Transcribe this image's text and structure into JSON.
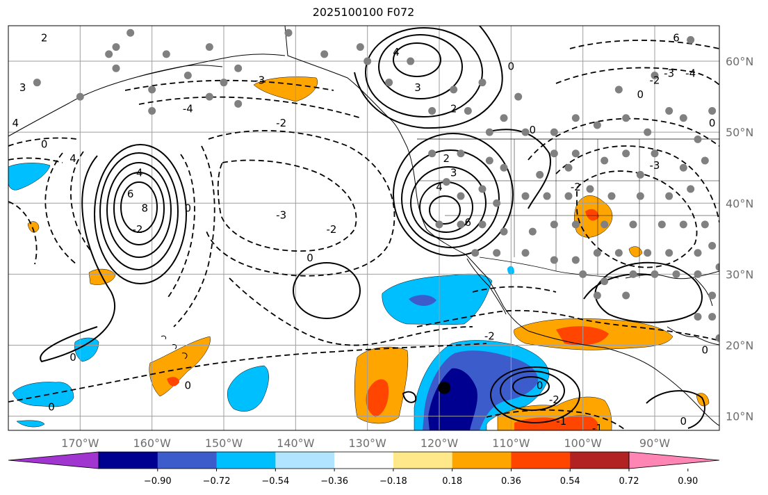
{
  "title": "2025100100 F072",
  "map": {
    "lon_range": [
      -180,
      -81
    ],
    "lat_range": [
      8,
      65
    ],
    "lat_ticks": [
      {
        "value": 60,
        "label": "60°N"
      },
      {
        "value": 50,
        "label": "50°N"
      },
      {
        "value": 40,
        "label": "40°N"
      },
      {
        "value": 30,
        "label": "30°N"
      },
      {
        "value": 20,
        "label": "20°N"
      },
      {
        "value": 10,
        "label": "10°N"
      }
    ],
    "lon_ticks": [
      {
        "value": -170,
        "label": "170°W"
      },
      {
        "value": -160,
        "label": "160°W"
      },
      {
        "value": -150,
        "label": "150°W"
      },
      {
        "value": -140,
        "label": "140°W"
      },
      {
        "value": -130,
        "label": "130°W"
      },
      {
        "value": -120,
        "label": "120°W"
      },
      {
        "value": -110,
        "label": "110°W"
      },
      {
        "value": -100,
        "label": "100°W"
      },
      {
        "value": -90,
        "label": "90°W"
      }
    ],
    "gridlines": true,
    "colors": {
      "grid": "#9e9e9e",
      "coast": "#000000",
      "contour": "#000000",
      "station": "#808080",
      "marker": "#000000"
    },
    "marker": {
      "lon": -119.3,
      "lat": 14.0
    },
    "contour_labels": [
      {
        "text": "2",
        "lon": -175,
        "lat": 63
      },
      {
        "text": "3",
        "lon": -178,
        "lat": 56
      },
      {
        "text": "4",
        "lon": -179,
        "lat": 51
      },
      {
        "text": "0",
        "lon": -175,
        "lat": 48
      },
      {
        "text": "4",
        "lon": -171,
        "lat": 46
      },
      {
        "text": "-3",
        "lon": -145,
        "lat": 57
      },
      {
        "text": "-4",
        "lon": -155,
        "lat": 53
      },
      {
        "text": "-2",
        "lon": -142,
        "lat": 51
      },
      {
        "text": "-4",
        "lon": -162,
        "lat": 44
      },
      {
        "text": "6",
        "lon": -163,
        "lat": 41
      },
      {
        "text": "8",
        "lon": -161,
        "lat": 39
      },
      {
        "text": "0",
        "lon": -155,
        "lat": 39
      },
      {
        "text": "-2",
        "lon": -162,
        "lat": 36
      },
      {
        "text": "-3",
        "lon": -142,
        "lat": 38
      },
      {
        "text": "-2",
        "lon": -135,
        "lat": 36
      },
      {
        "text": "0",
        "lon": -138,
        "lat": 32
      },
      {
        "text": "0",
        "lon": -171,
        "lat": 18
      },
      {
        "text": "0",
        "lon": -155,
        "lat": 14
      },
      {
        "text": "0",
        "lon": -174,
        "lat": 11
      },
      {
        "text": "4",
        "lon": -126,
        "lat": 61
      },
      {
        "text": "3",
        "lon": -123,
        "lat": 56
      },
      {
        "text": "2",
        "lon": -118,
        "lat": 53
      },
      {
        "text": "0",
        "lon": -110,
        "lat": 59
      },
      {
        "text": "0",
        "lon": -107,
        "lat": 50
      },
      {
        "text": "2",
        "lon": -119,
        "lat": 46
      },
      {
        "text": "3",
        "lon": -118,
        "lat": 44
      },
      {
        "text": "4",
        "lon": -120,
        "lat": 42
      },
      {
        "text": "6",
        "lon": -116,
        "lat": 37
      },
      {
        "text": "-2",
        "lon": -101,
        "lat": 42
      },
      {
        "text": "-3",
        "lon": -90,
        "lat": 45
      },
      {
        "text": "-2",
        "lon": -113,
        "lat": 21
      },
      {
        "text": "0",
        "lon": -106,
        "lat": 14
      },
      {
        "text": "-2",
        "lon": -104,
        "lat": 12
      },
      {
        "text": "-1",
        "lon": -103,
        "lat": 9
      },
      {
        "text": "-1",
        "lon": -98,
        "lat": 8
      },
      {
        "text": "0",
        "lon": -86,
        "lat": 9
      },
      {
        "text": "0",
        "lon": -83,
        "lat": 19
      },
      {
        "text": "6",
        "lon": -87,
        "lat": 63
      },
      {
        "text": "-3",
        "lon": -88,
        "lat": 58
      },
      {
        "text": "-4",
        "lon": -85,
        "lat": 58
      },
      {
        "text": "-2",
        "lon": -90,
        "lat": 57
      },
      {
        "text": "0",
        "lon": -92,
        "lat": 55
      },
      {
        "text": "0",
        "lon": -82,
        "lat": 51
      }
    ]
  },
  "colorbar": {
    "tick_labels": [
      "−0.90",
      "−0.72",
      "−0.54",
      "−0.36",
      "−0.18",
      "0.18",
      "0.36",
      "0.54",
      "0.72",
      "0.90"
    ],
    "colors": [
      "#a135d0",
      "#000090",
      "#3c5ccc",
      "#00bfff",
      "#b0e4ff",
      "#ffffff",
      "#ffe88a",
      "#ffa500",
      "#ff4500",
      "#b22222",
      "#ff85b4"
    ]
  },
  "shading": {
    "positive_colors": {
      "0.18": "#ffe88a",
      "0.36": "#ffa500",
      "0.54": "#ff4500"
    },
    "negative_colors": {
      "-0.36": "#00bfff",
      "-0.54": "#3c5ccc",
      "-0.72": "#000090"
    }
  }
}
